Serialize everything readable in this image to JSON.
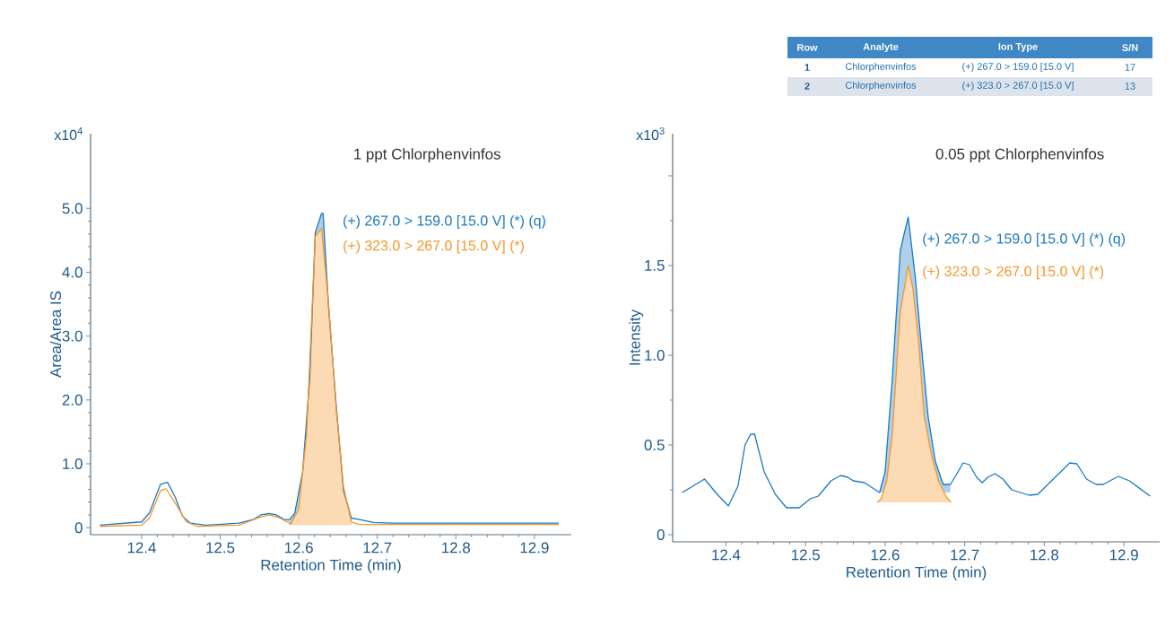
{
  "chart_data": [
    {
      "type": "other",
      "annotations": [
        "Row",
        "Analyte",
        "Ion Type",
        "S/N",
        "1",
        "Chlorphenvinfos",
        "(+) 267.0 > 159.0 [15.0 V]",
        "17",
        "2",
        "Chlorphenvinfos",
        "(+) 323.0 > 267.0 [15.0 V]",
        "13"
      ]
    },
    {
      "type": "line",
      "title": "1 ppt Chlorphenvinfos",
      "xlabel": "Retention Time (min)",
      "ylabel": "Area/Area IS",
      "annotations": [
        "x10$^{4}$"
      ],
      "xlim": [
        12.335,
        12.947
      ],
      "ylim": [
        -0.11,
        6.17
      ],
      "xticks": [
        12.4,
        12.5,
        12.6,
        12.7,
        12.8,
        12.9
      ],
      "yticks": [
        0,
        {
          "value": 1,
          "label": "1.0"
        },
        {
          "value": 2,
          "label": "2.0"
        },
        {
          "value": 3,
          "label": "3.0"
        },
        {
          "value": 4,
          "label": "4.0"
        },
        {
          "value": 5,
          "label": "5.0"
        }
      ],
      "series": [
        {
          "name": "(+) 267.0 > 159.0 [15.0 V] (*) (q)",
          "color": "#1a7ac0",
          "x": [
            12.347,
            12.4,
            12.41,
            12.424,
            12.433,
            12.443,
            12.452,
            12.462,
            12.481,
            12.524,
            12.543,
            12.552,
            12.562,
            12.571,
            12.581,
            12.588,
            12.595,
            12.605,
            12.614,
            12.621,
            12.629,
            12.631,
            12.638,
            12.648,
            12.657,
            12.667,
            12.676,
            12.695,
            12.719,
            12.931
          ],
          "values": [
            0.04,
            0.09,
            0.23,
            0.68,
            0.71,
            0.47,
            0.18,
            0.07,
            0.04,
            0.07,
            0.13,
            0.2,
            0.22,
            0.2,
            0.13,
            0.12,
            0.23,
            0.88,
            2.34,
            4.62,
            4.92,
            4.92,
            3.45,
            1.87,
            0.58,
            0.15,
            0.13,
            0.08,
            0.07,
            0.07
          ],
          "lower": [
            null,
            null,
            null,
            null,
            null,
            null,
            null,
            null,
            null,
            null,
            null,
            null,
            null,
            null,
            null,
            0.04,
            0.04,
            0.04,
            0.04,
            0.04,
            0.04,
            0.04,
            0.04,
            0.04,
            0.04,
            0.04,
            null,
            null,
            null,
            null
          ],
          "upper": [
            null,
            null,
            null,
            null,
            null,
            null,
            null,
            null,
            null,
            null,
            null,
            null,
            null,
            null,
            null,
            0.12,
            0.23,
            0.88,
            2.34,
            4.62,
            4.92,
            4.92,
            3.45,
            1.87,
            0.58,
            0.15,
            null,
            null,
            null,
            null
          ]
        },
        {
          "name": "(+) 323.0 > 267.0 [15.0 V] (*)",
          "color": "#f5962a",
          "x": [
            12.347,
            12.4,
            12.41,
            12.424,
            12.431,
            12.443,
            12.457,
            12.471,
            12.524,
            12.548,
            12.562,
            12.576,
            12.59,
            12.6,
            12.61,
            12.621,
            12.629,
            12.638,
            12.648,
            12.657,
            12.667,
            12.676,
            12.931
          ],
          "values": [
            0.02,
            0.04,
            0.15,
            0.58,
            0.61,
            0.38,
            0.09,
            0.02,
            0.04,
            0.15,
            0.2,
            0.15,
            0.06,
            0.29,
            1.46,
            4.56,
            4.69,
            3.51,
            1.81,
            0.64,
            0.09,
            0.05,
            0.05
          ],
          "lower": [
            null,
            null,
            null,
            null,
            null,
            null,
            null,
            null,
            null,
            null,
            null,
            null,
            0.04,
            0.04,
            0.04,
            0.04,
            0.04,
            0.04,
            0.04,
            0.04,
            0.04,
            null,
            null
          ],
          "upper": [
            null,
            null,
            null,
            null,
            null,
            null,
            null,
            null,
            null,
            null,
            null,
            null,
            0.06,
            0.29,
            1.46,
            4.56,
            4.69,
            3.51,
            1.81,
            0.64,
            0.09,
            null,
            null
          ]
        }
      ]
    },
    {
      "type": "line",
      "title": "0.05 ppt Chlorphenvinfos",
      "xlabel": "Retention Time (min)",
      "ylabel": "Intensity",
      "annotations": [
        "x10$^{3}$"
      ],
      "xlim": [
        12.333,
        12.945
      ],
      "ylim": [
        -0.04,
        2.235
      ],
      "xticks": [
        12.4,
        12.5,
        12.6,
        12.7,
        12.8,
        12.9
      ],
      "yticks": [
        0,
        {
          "value": 0.5,
          "label": "0.5"
        },
        {
          "value": 1,
          "label": "1.0"
        },
        {
          "value": 1.5,
          "label": "1.5"
        },
        {
          "value": 2,
          "label": null
        }
      ],
      "series": [
        {
          "name": "(+) 267.0 > 159.0 [15.0 V] (*) (q)",
          "color": "#1a7ac0",
          "x": [
            12.345,
            12.373,
            12.389,
            12.403,
            12.415,
            12.424,
            12.431,
            12.436,
            12.448,
            12.462,
            12.476,
            12.492,
            12.506,
            12.516,
            12.532,
            12.544,
            12.553,
            12.56,
            12.574,
            12.593,
            12.6,
            12.609,
            12.619,
            12.623,
            12.629,
            12.638,
            12.645,
            12.654,
            12.663,
            12.673,
            12.682,
            12.689,
            12.698,
            12.706,
            12.715,
            12.722,
            12.729,
            12.738,
            12.748,
            12.759,
            12.781,
            12.792,
            12.809,
            12.823,
            12.832,
            12.841,
            12.853,
            12.865,
            12.874,
            12.893,
            12.907,
            12.933
          ],
          "values": [
            0.235,
            0.31,
            0.225,
            0.16,
            0.27,
            0.5,
            0.56,
            0.56,
            0.35,
            0.225,
            0.15,
            0.15,
            0.2,
            0.215,
            0.3,
            0.33,
            0.32,
            0.3,
            0.29,
            0.235,
            0.35,
            0.87,
            1.58,
            1.66,
            1.77,
            1.43,
            1.08,
            0.66,
            0.41,
            0.28,
            0.28,
            0.33,
            0.4,
            0.39,
            0.32,
            0.29,
            0.32,
            0.34,
            0.31,
            0.25,
            0.22,
            0.225,
            0.3,
            0.36,
            0.4,
            0.395,
            0.31,
            0.28,
            0.28,
            0.325,
            0.3,
            0.215
          ],
          "lower": [
            null,
            null,
            null,
            null,
            null,
            null,
            null,
            null,
            null,
            null,
            null,
            null,
            null,
            null,
            null,
            null,
            null,
            null,
            null,
            0.235,
            0.235,
            0.235,
            0.235,
            0.235,
            0.235,
            0.235,
            0.235,
            0.235,
            0.235,
            0.235,
            0.235,
            null,
            null,
            null,
            null,
            null,
            null,
            null,
            null,
            null,
            null,
            null,
            null,
            null,
            null,
            null,
            null,
            null,
            null,
            null,
            null,
            null
          ],
          "upper": [
            null,
            null,
            null,
            null,
            null,
            null,
            null,
            null,
            null,
            null,
            null,
            null,
            null,
            null,
            null,
            null,
            null,
            null,
            null,
            0.235,
            0.35,
            0.87,
            1.58,
            1.66,
            1.77,
            1.43,
            1.08,
            0.66,
            0.41,
            0.28,
            0.28,
            null,
            null,
            null,
            null,
            null,
            null,
            null,
            null,
            null,
            null,
            null,
            null,
            null,
            null,
            null,
            null,
            null,
            null,
            null,
            null,
            null
          ]
        },
        {
          "name": "(+) 323.0 > 267.0 [15.0 V] (*)",
          "color": "#f5962a",
          "x": [
            12.59,
            12.595,
            12.602,
            12.609,
            12.619,
            12.629,
            12.635,
            12.642,
            12.649,
            12.659,
            12.668,
            12.677,
            12.683
          ],
          "values": [
            0.18,
            0.2,
            0.3,
            0.56,
            1.24,
            1.5,
            1.37,
            1.08,
            0.66,
            0.43,
            0.29,
            0.21,
            0.18
          ],
          "lower": [
            0.18,
            0.18,
            0.18,
            0.18,
            0.18,
            0.18,
            0.18,
            0.18,
            0.18,
            0.18,
            0.18,
            0.18,
            0.18
          ],
          "upper": [
            0.18,
            0.2,
            0.3,
            0.56,
            1.24,
            1.5,
            1.37,
            1.08,
            0.66,
            0.43,
            0.29,
            0.21,
            0.18
          ]
        }
      ]
    }
  ]
}
